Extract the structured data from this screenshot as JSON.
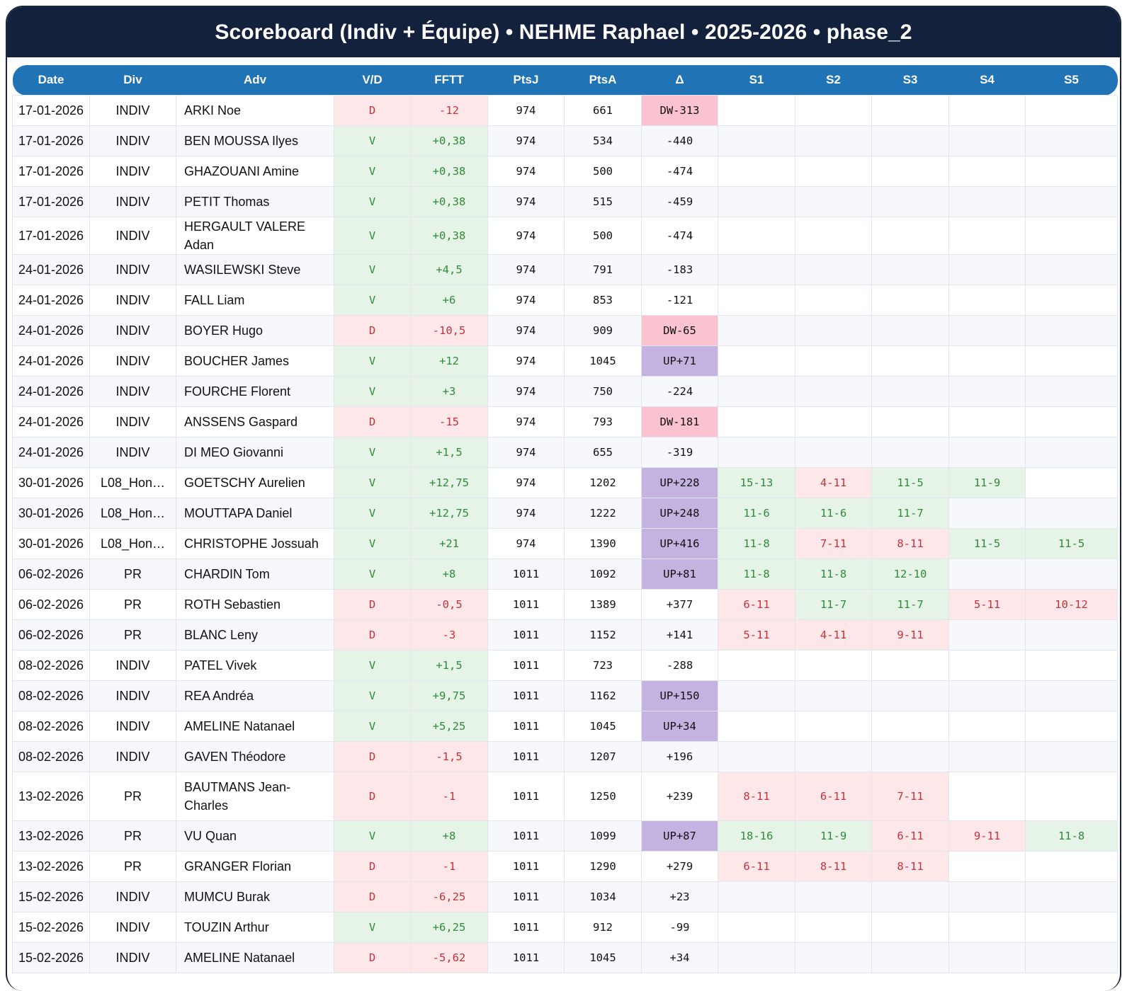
{
  "title": "Scoreboard (Indiv + Équipe) • NEHME Raphael • 2025-2026 • phase_2",
  "columns": [
    "Date",
    "Div",
    "Adv",
    "V/D",
    "FFTT",
    "PtsJ",
    "PtsA",
    "Δ",
    "S1",
    "S2",
    "S3",
    "S4",
    "S5"
  ],
  "colors": {
    "header_bg": "#13213d",
    "thead_bg": "#2073b4",
    "win_bg": "#e6f4e8",
    "win_text": "#2f8a3a",
    "loss_bg": "#fde7e8",
    "loss_text": "#c4323d",
    "dw_bg": "#fbc2cf",
    "up_bg": "#c4b3e0"
  },
  "rows": [
    {
      "date": "17-01-2026",
      "div": "INDIV",
      "adv": "ARKI Noe",
      "vd": "D",
      "fftt": "-12",
      "ptsj": "974",
      "ptsa": "661",
      "delta": "DW-313",
      "sets": [
        "",
        "",
        "",
        "",
        ""
      ]
    },
    {
      "date": "17-01-2026",
      "div": "INDIV",
      "adv": "BEN MOUSSA Ilyes",
      "vd": "V",
      "fftt": "+0,38",
      "ptsj": "974",
      "ptsa": "534",
      "delta": "-440",
      "sets": [
        "",
        "",
        "",
        "",
        ""
      ]
    },
    {
      "date": "17-01-2026",
      "div": "INDIV",
      "adv": "GHAZOUANI Amine",
      "vd": "V",
      "fftt": "+0,38",
      "ptsj": "974",
      "ptsa": "500",
      "delta": "-474",
      "sets": [
        "",
        "",
        "",
        "",
        ""
      ]
    },
    {
      "date": "17-01-2026",
      "div": "INDIV",
      "adv": "PETIT Thomas",
      "vd": "V",
      "fftt": "+0,38",
      "ptsj": "974",
      "ptsa": "515",
      "delta": "-459",
      "sets": [
        "",
        "",
        "",
        "",
        ""
      ]
    },
    {
      "date": "17-01-2026",
      "div": "INDIV",
      "adv": "HERGAULT VALERE Adan",
      "vd": "V",
      "fftt": "+0,38",
      "ptsj": "974",
      "ptsa": "500",
      "delta": "-474",
      "sets": [
        "",
        "",
        "",
        "",
        ""
      ]
    },
    {
      "date": "24-01-2026",
      "div": "INDIV",
      "adv": "WASILEWSKI Steve",
      "vd": "V",
      "fftt": "+4,5",
      "ptsj": "974",
      "ptsa": "791",
      "delta": "-183",
      "sets": [
        "",
        "",
        "",
        "",
        ""
      ]
    },
    {
      "date": "24-01-2026",
      "div": "INDIV",
      "adv": "FALL Liam",
      "vd": "V",
      "fftt": "+6",
      "ptsj": "974",
      "ptsa": "853",
      "delta": "-121",
      "sets": [
        "",
        "",
        "",
        "",
        ""
      ]
    },
    {
      "date": "24-01-2026",
      "div": "INDIV",
      "adv": "BOYER Hugo",
      "vd": "D",
      "fftt": "-10,5",
      "ptsj": "974",
      "ptsa": "909",
      "delta": "DW-65",
      "sets": [
        "",
        "",
        "",
        "",
        ""
      ]
    },
    {
      "date": "24-01-2026",
      "div": "INDIV",
      "adv": "BOUCHER James",
      "vd": "V",
      "fftt": "+12",
      "ptsj": "974",
      "ptsa": "1045",
      "delta": "UP+71",
      "sets": [
        "",
        "",
        "",
        "",
        ""
      ]
    },
    {
      "date": "24-01-2026",
      "div": "INDIV",
      "adv": "FOURCHE Florent",
      "vd": "V",
      "fftt": "+3",
      "ptsj": "974",
      "ptsa": "750",
      "delta": "-224",
      "sets": [
        "",
        "",
        "",
        "",
        ""
      ]
    },
    {
      "date": "24-01-2026",
      "div": "INDIV",
      "adv": "ANSSENS Gaspard",
      "vd": "D",
      "fftt": "-15",
      "ptsj": "974",
      "ptsa": "793",
      "delta": "DW-181",
      "sets": [
        "",
        "",
        "",
        "",
        ""
      ]
    },
    {
      "date": "24-01-2026",
      "div": "INDIV",
      "adv": "DI MEO Giovanni",
      "vd": "V",
      "fftt": "+1,5",
      "ptsj": "974",
      "ptsa": "655",
      "delta": "-319",
      "sets": [
        "",
        "",
        "",
        "",
        ""
      ]
    },
    {
      "date": "30-01-2026",
      "div": "L08_Hon…",
      "adv": "GOETSCHY Aurelien",
      "vd": "V",
      "fftt": "+12,75",
      "ptsj": "974",
      "ptsa": "1202",
      "delta": "UP+228",
      "sets": [
        "15-13",
        "4-11",
        "11-5",
        "11-9",
        ""
      ]
    },
    {
      "date": "30-01-2026",
      "div": "L08_Hon…",
      "adv": "MOUTTAPA Daniel",
      "vd": "V",
      "fftt": "+12,75",
      "ptsj": "974",
      "ptsa": "1222",
      "delta": "UP+248",
      "sets": [
        "11-6",
        "11-6",
        "11-7",
        "",
        ""
      ]
    },
    {
      "date": "30-01-2026",
      "div": "L08_Hon…",
      "adv": "CHRISTOPHE Jossuah",
      "vd": "V",
      "fftt": "+21",
      "ptsj": "974",
      "ptsa": "1390",
      "delta": "UP+416",
      "sets": [
        "11-8",
        "7-11",
        "8-11",
        "11-5",
        "11-5"
      ]
    },
    {
      "date": "06-02-2026",
      "div": "PR",
      "adv": "CHARDIN Tom",
      "vd": "V",
      "fftt": "+8",
      "ptsj": "1011",
      "ptsa": "1092",
      "delta": "UP+81",
      "sets": [
        "11-8",
        "11-8",
        "12-10",
        "",
        ""
      ]
    },
    {
      "date": "06-02-2026",
      "div": "PR",
      "adv": "ROTH Sebastien",
      "vd": "D",
      "fftt": "-0,5",
      "ptsj": "1011",
      "ptsa": "1389",
      "delta": "+377",
      "sets": [
        "6-11",
        "11-7",
        "11-7",
        "5-11",
        "10-12"
      ]
    },
    {
      "date": "06-02-2026",
      "div": "PR",
      "adv": "BLANC Leny",
      "vd": "D",
      "fftt": "-3",
      "ptsj": "1011",
      "ptsa": "1152",
      "delta": "+141",
      "sets": [
        "5-11",
        "4-11",
        "9-11",
        "",
        ""
      ]
    },
    {
      "date": "08-02-2026",
      "div": "INDIV",
      "adv": "PATEL Vivek",
      "vd": "V",
      "fftt": "+1,5",
      "ptsj": "1011",
      "ptsa": "723",
      "delta": "-288",
      "sets": [
        "",
        "",
        "",
        "",
        ""
      ]
    },
    {
      "date": "08-02-2026",
      "div": "INDIV",
      "adv": "REA Andréa",
      "vd": "V",
      "fftt": "+9,75",
      "ptsj": "1011",
      "ptsa": "1162",
      "delta": "UP+150",
      "sets": [
        "",
        "",
        "",
        "",
        ""
      ]
    },
    {
      "date": "08-02-2026",
      "div": "INDIV",
      "adv": "AMELINE Natanael",
      "vd": "V",
      "fftt": "+5,25",
      "ptsj": "1011",
      "ptsa": "1045",
      "delta": "UP+34",
      "sets": [
        "",
        "",
        "",
        "",
        ""
      ]
    },
    {
      "date": "08-02-2026",
      "div": "INDIV",
      "adv": "GAVEN Théodore",
      "vd": "D",
      "fftt": "-1,5",
      "ptsj": "1011",
      "ptsa": "1207",
      "delta": "+196",
      "sets": [
        "",
        "",
        "",
        "",
        ""
      ]
    },
    {
      "date": "13-02-2026",
      "div": "PR",
      "adv": "BAUTMANS Jean-Charles",
      "vd": "D",
      "fftt": "-1",
      "ptsj": "1011",
      "ptsa": "1250",
      "delta": "+239",
      "sets": [
        "8-11",
        "6-11",
        "7-11",
        "",
        ""
      ]
    },
    {
      "date": "13-02-2026",
      "div": "PR",
      "adv": "VU Quan",
      "vd": "V",
      "fftt": "+8",
      "ptsj": "1011",
      "ptsa": "1099",
      "delta": "UP+87",
      "sets": [
        "18-16",
        "11-9",
        "6-11",
        "9-11",
        "11-8"
      ]
    },
    {
      "date": "13-02-2026",
      "div": "PR",
      "adv": "GRANGER Florian",
      "vd": "D",
      "fftt": "-1",
      "ptsj": "1011",
      "ptsa": "1290",
      "delta": "+279",
      "sets": [
        "6-11",
        "8-11",
        "8-11",
        "",
        ""
      ]
    },
    {
      "date": "15-02-2026",
      "div": "INDIV",
      "adv": "MUMCU Burak",
      "vd": "D",
      "fftt": "-6,25",
      "ptsj": "1011",
      "ptsa": "1034",
      "delta": "+23",
      "sets": [
        "",
        "",
        "",
        "",
        ""
      ]
    },
    {
      "date": "15-02-2026",
      "div": "INDIV",
      "adv": "TOUZIN Arthur",
      "vd": "V",
      "fftt": "+6,25",
      "ptsj": "1011",
      "ptsa": "912",
      "delta": "-99",
      "sets": [
        "",
        "",
        "",
        "",
        ""
      ]
    },
    {
      "date": "15-02-2026",
      "div": "INDIV",
      "adv": "AMELINE Natanael",
      "vd": "D",
      "fftt": "-5,62",
      "ptsj": "1011",
      "ptsa": "1045",
      "delta": "+34",
      "sets": [
        "",
        "",
        "",
        "",
        ""
      ]
    }
  ]
}
